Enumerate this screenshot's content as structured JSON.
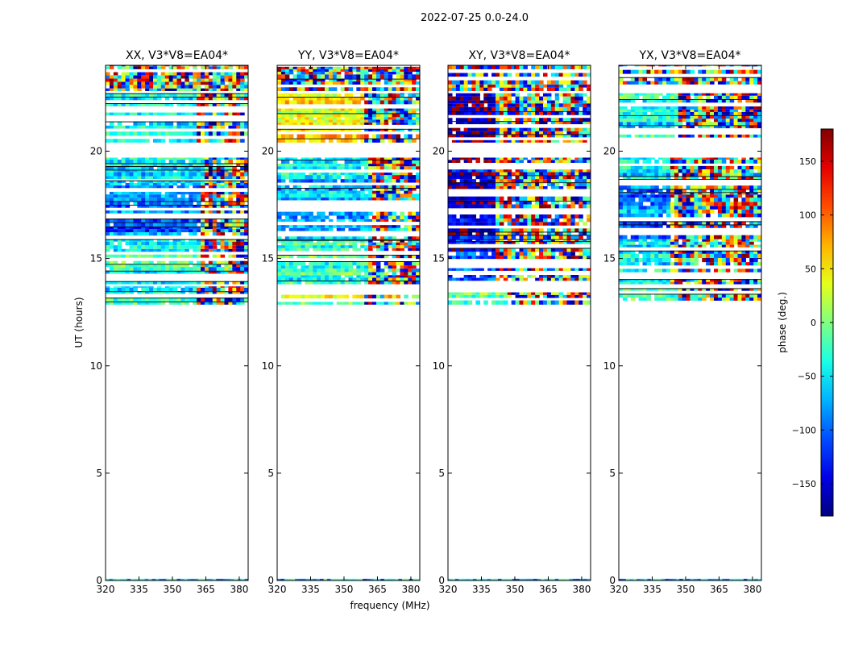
{
  "figure": {
    "suptitle": "2022-07-25 0.0-24.0",
    "xlabel": "frequency (MHz)",
    "ylabel": "UT (hours)"
  },
  "colorbar": {
    "label": "phase (deg.)",
    "range": [
      -180,
      180
    ],
    "ticks": [
      -150,
      -100,
      -50,
      0,
      50,
      100,
      150
    ],
    "tick_labels": [
      "−150",
      "−100",
      "−50",
      "0",
      "50",
      "100",
      "150"
    ],
    "colormap": "jet",
    "colors": [
      "#00007f",
      "#0000ff",
      "#007fff",
      "#00ffff",
      "#7fff7f",
      "#ffff00",
      "#ff7f00",
      "#ff0000",
      "#7f0000"
    ]
  },
  "chart_data": [
    {
      "type": "heatmap",
      "title": "XX, V3*V8=EA04*",
      "x_ticks": [
        320,
        335,
        350,
        365,
        380
      ],
      "x_tick_labels": [
        "320",
        "335",
        "350",
        "365",
        "380"
      ],
      "xlim": [
        320,
        384
      ],
      "y_ticks": [
        0,
        5,
        10,
        15,
        20
      ],
      "y_tick_labels": [
        "0",
        "5",
        "10",
        "15",
        "20"
      ],
      "ylim": [
        0,
        24
      ],
      "bands": [
        {
          "ut": [
            12.85,
            13.7
          ],
          "base_phase": -40,
          "right_from": 360
        },
        {
          "ut": [
            13.8,
            15.9
          ],
          "base_phase": -30,
          "right_from": 361
        },
        {
          "ut": [
            15.9,
            18.7
          ],
          "base_phase": -90,
          "right_from": 362
        },
        {
          "ut": [
            18.7,
            19.7
          ],
          "base_phase": -60,
          "right_from": 363
        },
        {
          "ut": [
            20.4,
            22.7
          ],
          "base_phase": -45,
          "right_from": 360
        },
        {
          "ut": [
            22.8,
            24.0
          ],
          "base_phase": 0,
          "right_from": 320
        }
      ]
    },
    {
      "type": "heatmap",
      "title": "YY, V3*V8=EA04*",
      "x_ticks": [
        320,
        335,
        350,
        365,
        380
      ],
      "x_tick_labels": [
        "320",
        "335",
        "350",
        "365",
        "380"
      ],
      "xlim": [
        320,
        384
      ],
      "y_ticks": [
        0,
        5,
        10,
        15,
        20
      ],
      "y_tick_labels": [
        "0",
        "5",
        "10",
        "15",
        "20"
      ],
      "ylim": [
        0,
        24
      ],
      "bands": [
        {
          "ut": [
            12.85,
            13.7
          ],
          "base_phase": 20,
          "right_from": 358
        },
        {
          "ut": [
            13.8,
            15.9
          ],
          "base_phase": -20,
          "right_from": 360
        },
        {
          "ut": [
            15.9,
            18.7
          ],
          "base_phase": -70,
          "right_from": 362
        },
        {
          "ut": [
            18.7,
            19.7
          ],
          "base_phase": -40,
          "right_from": 360
        },
        {
          "ut": [
            20.4,
            22.7
          ],
          "base_phase": 45,
          "right_from": 358
        },
        {
          "ut": [
            22.8,
            24.0
          ],
          "base_phase": 0,
          "right_from": 320
        }
      ]
    },
    {
      "type": "heatmap",
      "title": "XY, V3*V8=EA04*",
      "x_ticks": [
        320,
        335,
        350,
        365,
        380
      ],
      "x_tick_labels": [
        "320",
        "335",
        "350",
        "365",
        "380"
      ],
      "xlim": [
        320,
        384
      ],
      "y_ticks": [
        0,
        5,
        10,
        15,
        20
      ],
      "y_tick_labels": [
        "0",
        "5",
        "10",
        "15",
        "20"
      ],
      "ylim": [
        0,
        24
      ],
      "bands": [
        {
          "ut": [
            12.85,
            13.7
          ],
          "base_phase": 0,
          "right_from": 345
        },
        {
          "ut": [
            13.8,
            15.9
          ],
          "base_phase": -120,
          "right_from": 340
        },
        {
          "ut": [
            15.9,
            18.7
          ],
          "base_phase": -150,
          "right_from": 340
        },
        {
          "ut": [
            18.7,
            19.7
          ],
          "base_phase": -150,
          "right_from": 340
        },
        {
          "ut": [
            20.4,
            22.7
          ],
          "base_phase": -160,
          "right_from": 340
        },
        {
          "ut": [
            22.8,
            24.0
          ],
          "base_phase": 0,
          "right_from": 320
        }
      ]
    },
    {
      "type": "heatmap",
      "title": "YX, V3*V8=EA04*",
      "x_ticks": [
        320,
        335,
        350,
        365,
        380
      ],
      "x_tick_labels": [
        "320",
        "335",
        "350",
        "365",
        "380"
      ],
      "xlim": [
        320,
        384
      ],
      "y_ticks": [
        0,
        5,
        10,
        15,
        20
      ],
      "y_tick_labels": [
        "0",
        "5",
        "10",
        "15",
        "20"
      ],
      "ylim": [
        0,
        24
      ],
      "bands": [
        {
          "ut": [
            12.85,
            13.7
          ],
          "base_phase": -10,
          "right_from": 345
        },
        {
          "ut": [
            13.8,
            15.9
          ],
          "base_phase": -60,
          "right_from": 342
        },
        {
          "ut": [
            15.9,
            18.7
          ],
          "base_phase": -90,
          "right_from": 342
        },
        {
          "ut": [
            18.7,
            19.7
          ],
          "base_phase": -60,
          "right_from": 342
        },
        {
          "ut": [
            20.4,
            22.7
          ],
          "base_phase": -40,
          "right_from": 345
        },
        {
          "ut": [
            22.8,
            24.0
          ],
          "base_phase": 0,
          "right_from": 320
        }
      ]
    }
  ]
}
